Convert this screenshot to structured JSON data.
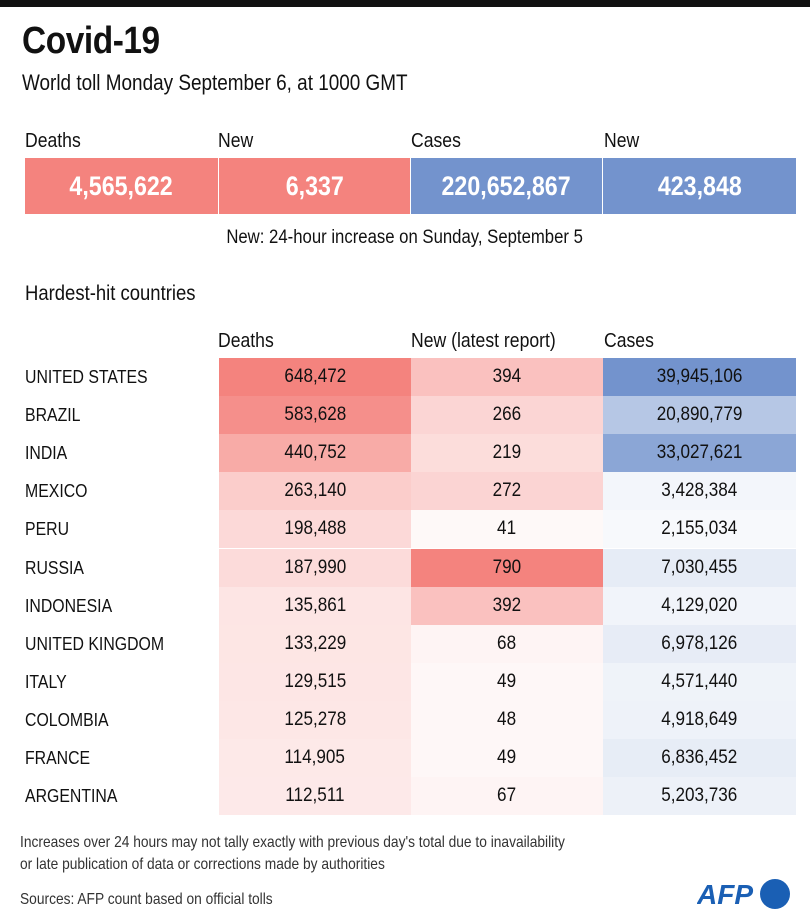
{
  "header": {
    "title": "Covid-19",
    "subtitle": "World toll Monday September 6, at 1000 GMT"
  },
  "kpis": [
    {
      "label": "Deaths",
      "value": "4,565,622",
      "color": "#f4837e"
    },
    {
      "label": "New",
      "value": "6,337",
      "color": "#f4837e"
    },
    {
      "label": "Cases",
      "value": "220,652,867",
      "color": "#7393cd"
    },
    {
      "label": "New",
      "value": "423,848",
      "color": "#7393cd"
    }
  ],
  "kpi_note": "New: 24-hour increase on Sunday, September 5",
  "section_title": "Hardest-hit countries",
  "colors": {
    "red_max": "#f4837e",
    "blue_max": "#7393cd",
    "low": "#ffffff"
  },
  "chart_data": {
    "type": "table",
    "title": "Hardest-hit countries",
    "columns": [
      "Deaths",
      "New (latest report)",
      "Cases"
    ],
    "rows": [
      {
        "country": "UNITED STATES",
        "deaths": 648472,
        "new": 394,
        "cases": 39945106
      },
      {
        "country": "BRAZIL",
        "deaths": 583628,
        "new": 266,
        "cases": 20890779
      },
      {
        "country": "INDIA",
        "deaths": 440752,
        "new": 219,
        "cases": 33027621
      },
      {
        "country": "MEXICO",
        "deaths": 263140,
        "new": 272,
        "cases": 3428384
      },
      {
        "country": "PERU",
        "deaths": 198488,
        "new": 41,
        "cases": 2155034
      },
      {
        "country": "RUSSIA",
        "deaths": 187990,
        "new": 790,
        "cases": 7030455
      },
      {
        "country": "INDONESIA",
        "deaths": 135861,
        "new": 392,
        "cases": 4129020
      },
      {
        "country": "UNITED KINGDOM",
        "deaths": 133229,
        "new": 68,
        "cases": 6978126
      },
      {
        "country": "ITALY",
        "deaths": 129515,
        "new": 49,
        "cases": 4571440
      },
      {
        "country": "COLOMBIA",
        "deaths": 125278,
        "new": 48,
        "cases": 4918649
      },
      {
        "country": "FRANCE",
        "deaths": 114905,
        "new": 49,
        "cases": 6836452
      },
      {
        "country": "ARGENTINA",
        "deaths": 112511,
        "new": 67,
        "cases": 5203736
      }
    ]
  },
  "footer": {
    "note_line1": "Increases over 24 hours may not tally exactly with previous day's total due to inavailability",
    "note_line2": "or late publication of data or corrections made by authorities",
    "sources": "Sources: AFP count based on official tolls",
    "logo": "AFP"
  }
}
